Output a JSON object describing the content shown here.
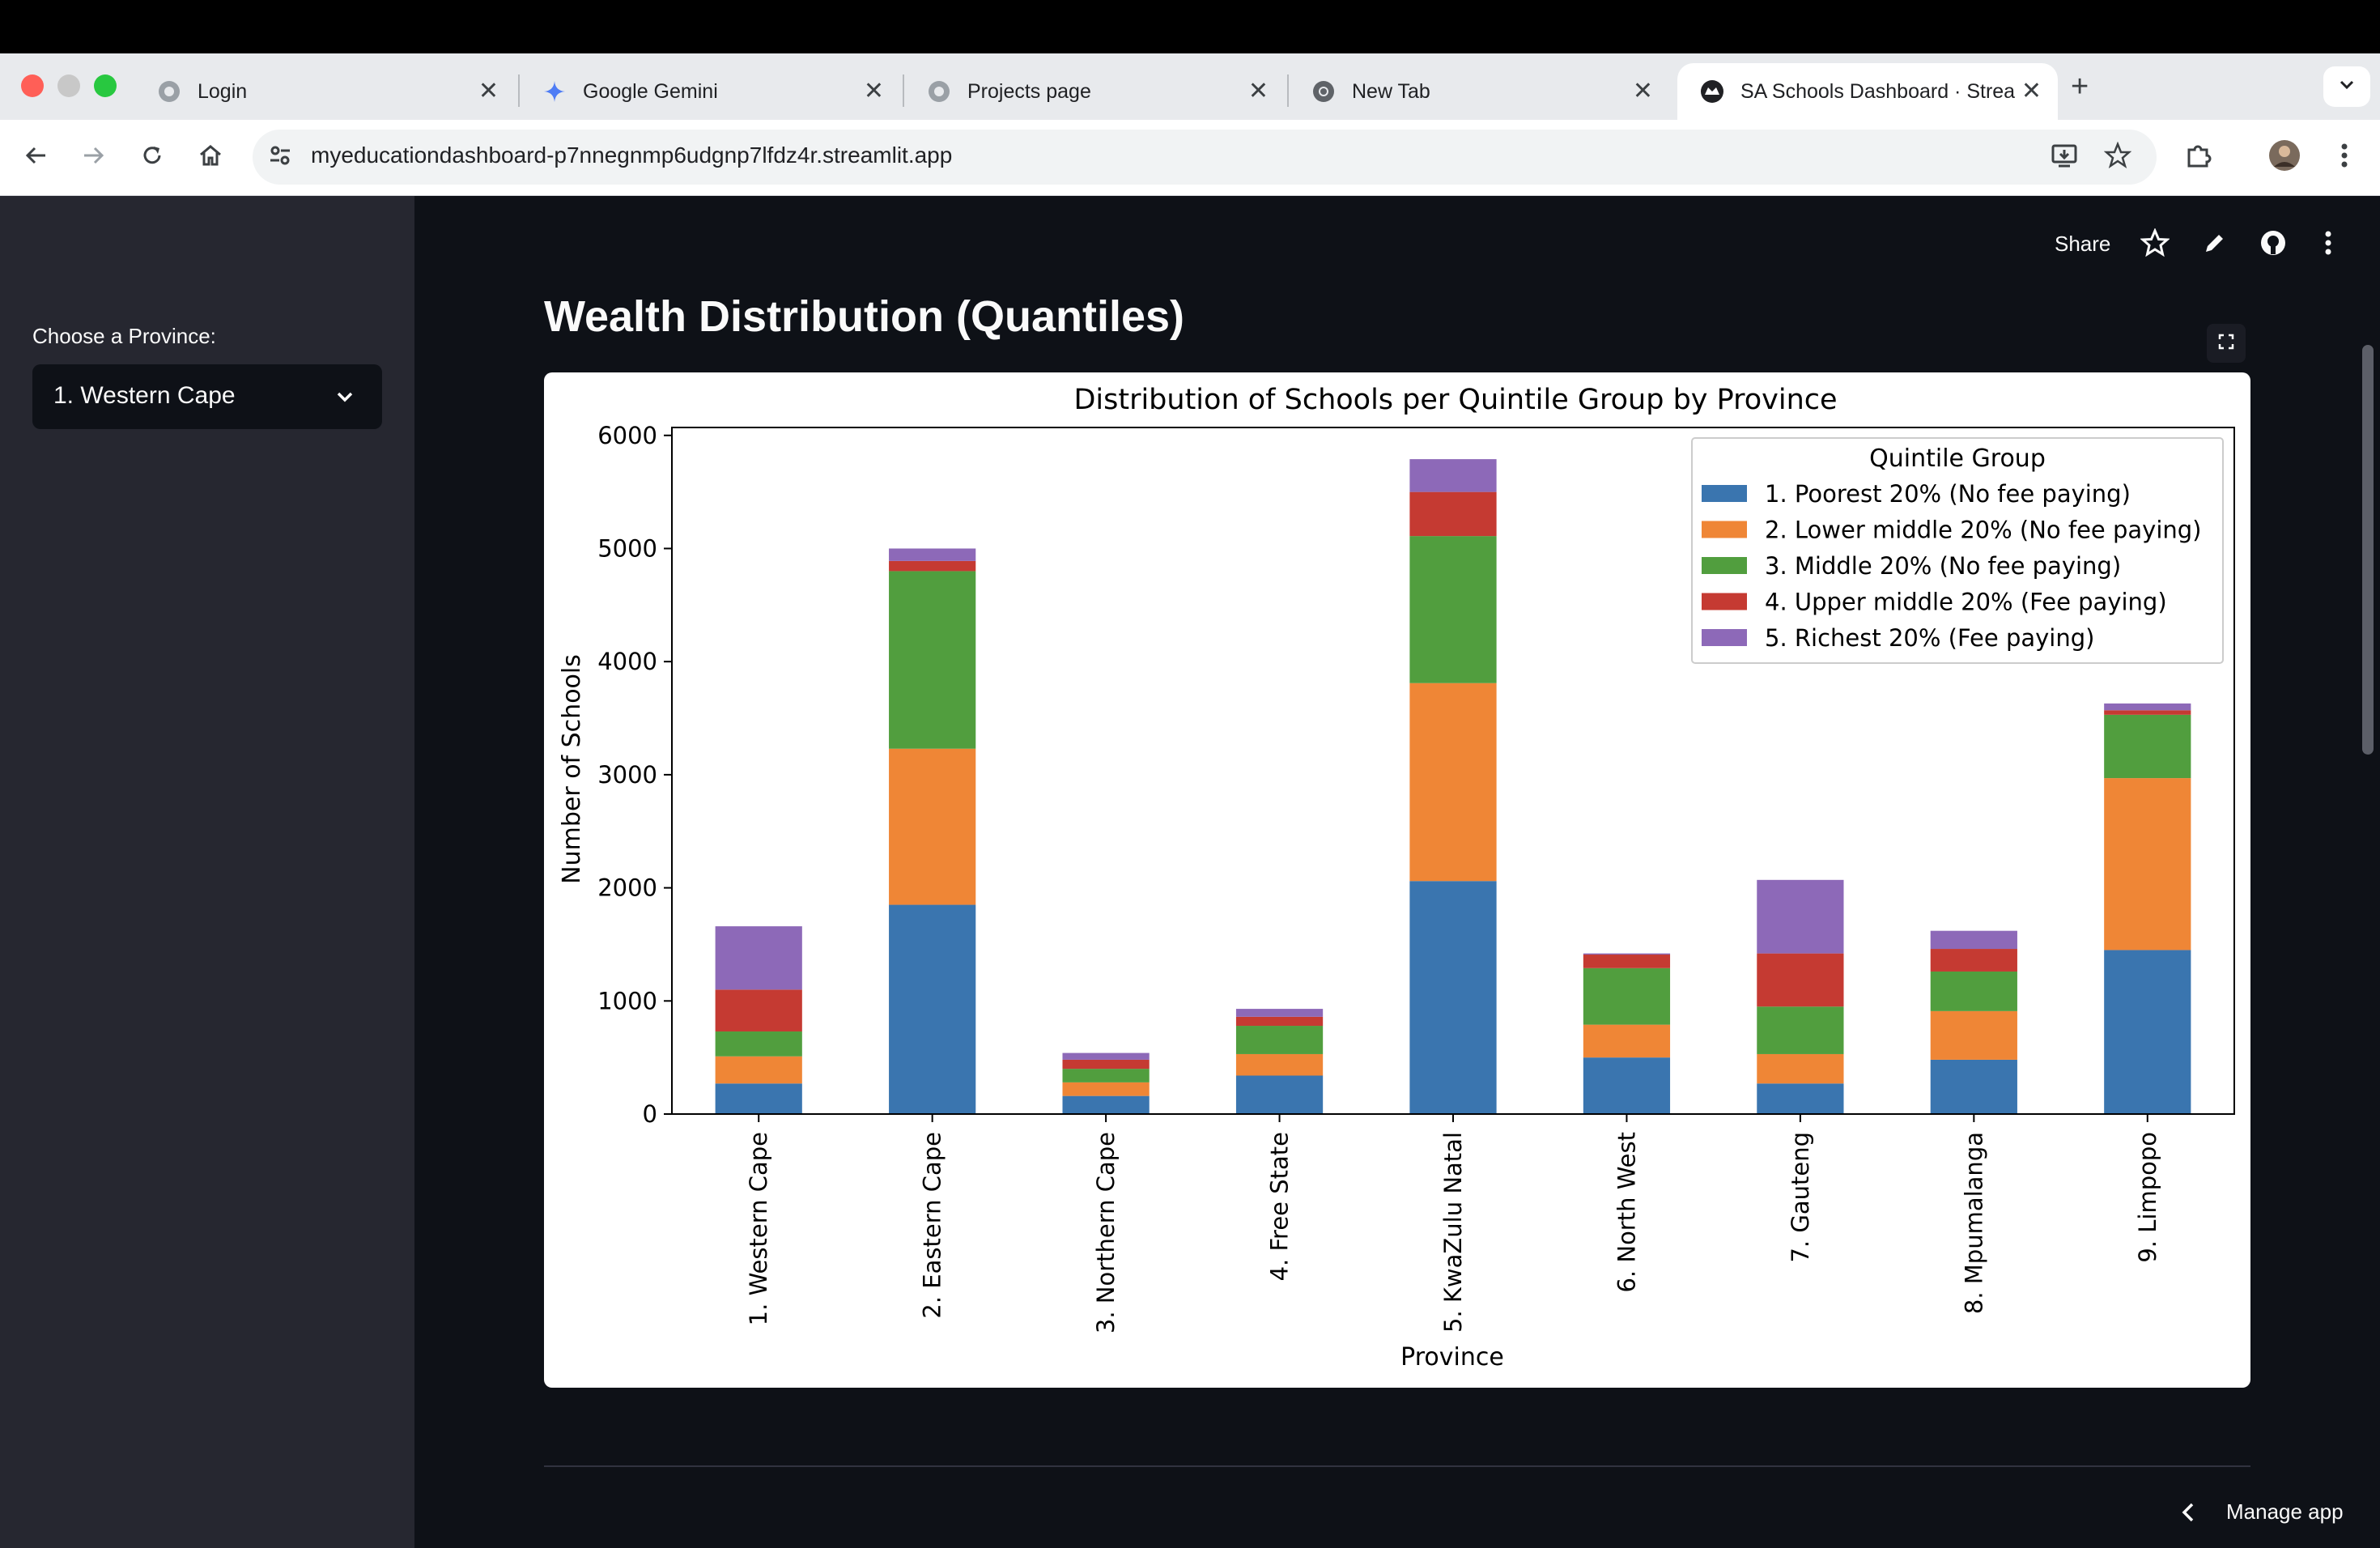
{
  "browser": {
    "tabs": [
      {
        "label": "Login",
        "icon": "globe-icon"
      },
      {
        "label": "Google Gemini",
        "icon": "gemini-icon"
      },
      {
        "label": "Projects page",
        "icon": "globe-icon"
      },
      {
        "label": "New Tab",
        "icon": "chrome-icon"
      },
      {
        "label": "SA Schools Dashboard · Streamlit",
        "icon": "streamlit-icon"
      }
    ],
    "url": "myeducationdashboard-p7nnegnmp6udgnp7lfdz4r.streamlit.app"
  },
  "sidebar": {
    "province_label": "Choose a Province:",
    "province_value": "1. Western Cape"
  },
  "header": {
    "share_label": "Share"
  },
  "page": {
    "title": "Wealth Distribution (Quantiles)",
    "manage_app_label": "Manage app"
  },
  "chart_data": {
    "type": "bar",
    "stacked": true,
    "title": "Distribution of Schools per Quintile Group by Province",
    "xlabel": "Province",
    "ylabel": "Number of Schools",
    "ylim": [
      0,
      6070
    ],
    "yticks": [
      0,
      1000,
      2000,
      3000,
      4000,
      5000,
      6000
    ],
    "legend_title": "Quintile Group",
    "legend_position": "top-right",
    "categories": [
      "1. Western Cape",
      "2. Eastern Cape",
      "3. Northern Cape",
      "4. Free State",
      "5. KwaZulu Natal",
      "6. North West",
      "7. Gauteng",
      "8. Mpumalanga",
      "9. Limpopo"
    ],
    "series": [
      {
        "name": "1. Poorest 20% (No fee paying)",
        "color": "#3a75af",
        "values": [
          270,
          1850,
          160,
          340,
          2060,
          500,
          270,
          480,
          1450
        ]
      },
      {
        "name": "2. Lower middle 20% (No fee paying)",
        "color": "#ef8636",
        "values": [
          240,
          1380,
          120,
          190,
          1750,
          290,
          260,
          430,
          1520
        ]
      },
      {
        "name": "3. Middle 20% (No fee paying)",
        "color": "#519e3e",
        "values": [
          220,
          1570,
          120,
          250,
          1300,
          500,
          420,
          350,
          560
        ]
      },
      {
        "name": "4. Upper middle 20% (Fee paying)",
        "color": "#c53a32",
        "values": [
          370,
          90,
          80,
          80,
          390,
          120,
          470,
          200,
          40
        ]
      },
      {
        "name": "5. Richest 20% (Fee paying)",
        "color": "#8d69b8",
        "values": [
          560,
          110,
          60,
          70,
          290,
          10,
          650,
          160,
          60
        ]
      }
    ]
  }
}
